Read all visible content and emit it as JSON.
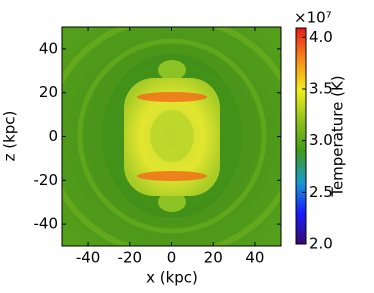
{
  "chart_data": {
    "type": "heatmap",
    "xlabel": "x (kpc)",
    "ylabel": "z (kpc)",
    "xlim": [
      -52.5,
      52.5
    ],
    "ylim": [
      -50,
      50
    ],
    "xticks": [
      -40,
      -20,
      0,
      20,
      40
    ],
    "yticks": [
      -40,
      -20,
      0,
      20,
      40
    ],
    "colorbar": {
      "label": "Temperature (K)",
      "multiplier": "×10⁷",
      "lim": [
        2.0,
        4.09
      ],
      "ticks": [
        {
          "value": 2.0,
          "label": "2.0"
        },
        {
          "value": 2.5,
          "label": "2.5"
        },
        {
          "value": 3.0,
          "label": "3.0"
        },
        {
          "value": 3.5,
          "label": "3.5"
        },
        {
          "value": 4.0,
          "label": "4.0"
        }
      ],
      "colors": [
        "#3a0a6e",
        "#1a1aff",
        "#1a9ad0",
        "#3f9a1a",
        "#8fc21a",
        "#f2ee1a",
        "#f58a1a",
        "#e81a1a"
      ]
    }
  }
}
